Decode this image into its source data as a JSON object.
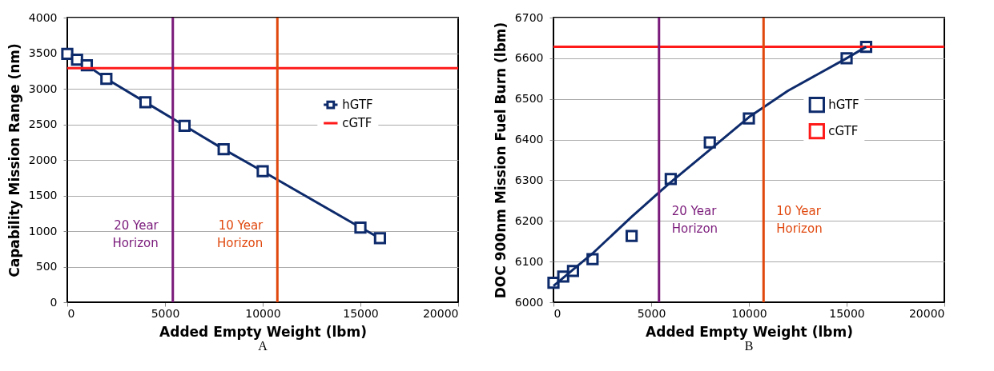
{
  "chart_data": [
    {
      "type": "line",
      "xlabel": "Added Empty Weight (lbm)",
      "ylabel": "Capability Mission Range (nm)",
      "annotations": [
        "A"
      ],
      "xlim": [
        0,
        20000
      ],
      "xticks": [
        0,
        5000,
        10000,
        15000,
        20000
      ],
      "ylim": [
        0,
        4000
      ],
      "yticks": [
        0,
        500,
        1000,
        1500,
        2000,
        2500,
        3000,
        3500,
        4000
      ],
      "grid": "y",
      "legend": "right",
      "series": [
        {
          "name": "hGTF",
          "color": "#0d2a6b",
          "marker": "square",
          "x": [
            0,
            500,
            1000,
            2000,
            4000,
            6000,
            8000,
            10000,
            15000,
            16000
          ],
          "values": [
            3490,
            3410,
            3330,
            3140,
            2810,
            2480,
            2150,
            1840,
            1050,
            900
          ]
        },
        {
          "name": "cGTF",
          "color": "#ff1a1a",
          "marker": "none",
          "x": [
            0,
            20000
          ],
          "values": [
            3290,
            3290
          ]
        }
      ],
      "ref_lines": [
        {
          "axis": "x",
          "value": 5400,
          "label": "20 Year\nHorizon",
          "color": "#7a1a7a"
        },
        {
          "axis": "x",
          "value": 10750,
          "label": "10 Year\nHorizon",
          "color": "#e0480e"
        }
      ]
    },
    {
      "type": "scatter",
      "xlabel": "Added Empty Weight (lbm)",
      "ylabel": "DOC 900nm Mission Fuel Burn (lbm)",
      "annotations": [
        "B"
      ],
      "xlim": [
        0,
        20000
      ],
      "xticks": [
        0,
        5000,
        10000,
        15000,
        20000
      ],
      "ylim": [
        6000,
        6700
      ],
      "yticks": [
        6000,
        6100,
        6200,
        6300,
        6400,
        6500,
        6600,
        6700
      ],
      "grid": "y",
      "legend": "right",
      "series": [
        {
          "name": "hGTF",
          "color": "#0d2a6b",
          "marker": "square",
          "x": [
            0,
            500,
            1000,
            2000,
            4000,
            6000,
            8000,
            10000,
            15000,
            16000
          ],
          "values": [
            6048,
            6063,
            6077,
            6106,
            6163,
            6303,
            6393,
            6452,
            6600,
            6628
          ]
        },
        {
          "name": "cGTF",
          "type": "line",
          "color": "#ff1a1a",
          "marker": "none",
          "x": [
            0,
            20000
          ],
          "values": [
            6628,
            6628
          ]
        },
        {
          "type": "line",
          "color": "#0d2a6b",
          "marker": "none",
          "x": [
            0,
            2000,
            4000,
            5400,
            6000,
            8000,
            10000,
            12000,
            15000,
            16000
          ],
          "values": [
            6040,
            6120,
            6210,
            6270,
            6295,
            6375,
            6455,
            6520,
            6600,
            6628
          ]
        }
      ],
      "ref_lines": [
        {
          "axis": "x",
          "value": 5400,
          "label": "20 Year\nHorizon",
          "color": "#7a1a7a"
        },
        {
          "axis": "x",
          "value": 10750,
          "label": "10 Year\nHorizon",
          "color": "#e0480e"
        }
      ]
    }
  ]
}
